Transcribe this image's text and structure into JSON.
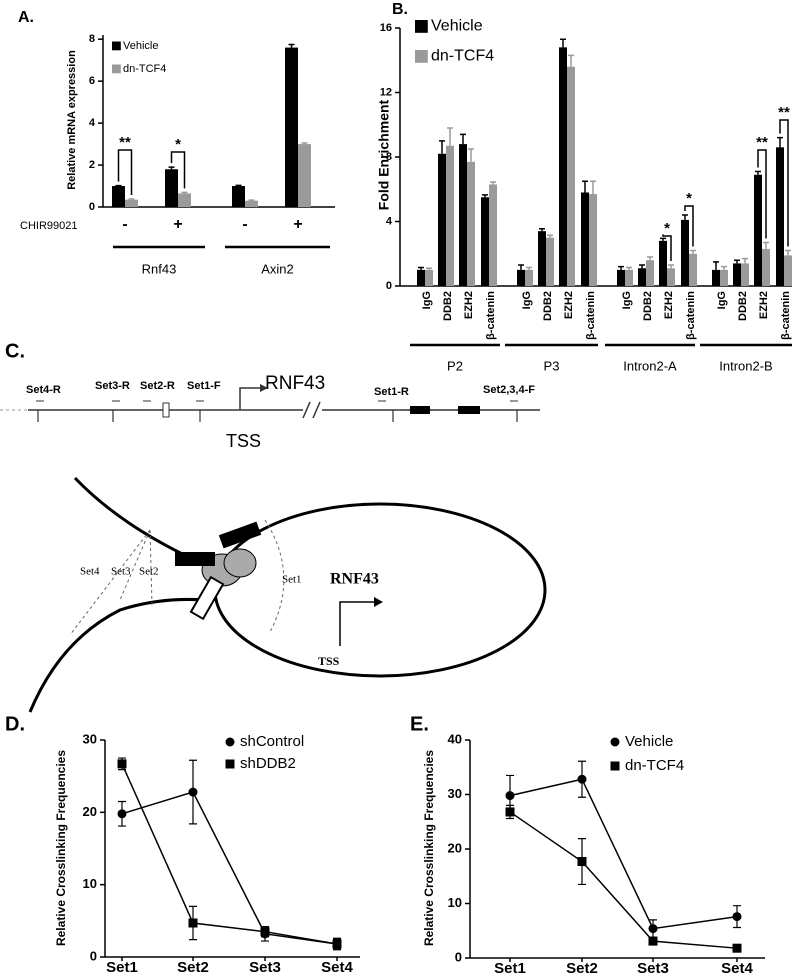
{
  "chart_data": [
    {
      "type": "bar",
      "label": "A.",
      "ylabel": "Relative mRNA expression",
      "xlabel": "CHIR99021",
      "categories": [
        "-",
        "+",
        "-",
        "+"
      ],
      "groups": [
        "Rnf43",
        "Axin2"
      ],
      "series": [
        {
          "name": "Vehicle",
          "color": "#000000",
          "values": [
            1.0,
            1.8,
            1.0,
            7.6
          ],
          "errors": [
            0.02,
            0.1,
            0.03,
            0.15
          ]
        },
        {
          "name": "dn-TCF4",
          "color": "#9a9a9a",
          "values": [
            0.35,
            0.65,
            0.3,
            3.0
          ],
          "errors": [
            0.03,
            0.05,
            0.03,
            0.05
          ]
        }
      ],
      "ylim": [
        0,
        8.2
      ],
      "yticks": [
        0,
        2,
        4,
        6,
        8
      ],
      "annotations": [
        "**",
        "*"
      ]
    },
    {
      "type": "bar",
      "label": "B.",
      "ylabel": "Fold Enrichment",
      "categories": [
        "IgG",
        "DDB2",
        "EZH2",
        "β-catenin",
        "IgG",
        "DDB2",
        "EZH2",
        "β-catenin",
        "IgG",
        "DDB2",
        "EZH2",
        "β-catenin",
        "IgG",
        "DDB2",
        "EZH2",
        "β-catenin"
      ],
      "groups": [
        "P2",
        "P3",
        "Intron2-A",
        "Intron2-B"
      ],
      "series": [
        {
          "name": "Vehicle",
          "color": "#000000",
          "values": [
            1.0,
            8.2,
            8.8,
            5.5,
            1.0,
            3.4,
            14.8,
            5.8,
            1.0,
            1.1,
            2.8,
            4.1,
            1.0,
            1.4,
            6.9,
            8.6
          ],
          "errors": [
            0.15,
            0.8,
            0.6,
            0.15,
            0.3,
            0.15,
            0.5,
            0.7,
            0.2,
            0.2,
            0.15,
            0.3,
            0.5,
            0.2,
            0.2,
            0.6
          ]
        },
        {
          "name": "dn-TCF4",
          "color": "#9a9a9a",
          "values": [
            1.0,
            8.7,
            7.7,
            6.3,
            1.0,
            3.0,
            13.6,
            5.7,
            1.0,
            1.6,
            1.1,
            2.0,
            1.0,
            1.4,
            2.3,
            1.9
          ],
          "errors": [
            0.1,
            1.1,
            0.8,
            0.15,
            0.15,
            0.15,
            0.7,
            0.8,
            0.15,
            0.2,
            0.2,
            0.2,
            0.2,
            0.3,
            0.4,
            0.3
          ]
        }
      ],
      "ylim": [
        0,
        16
      ],
      "yticks": [
        0,
        4,
        8,
        12,
        16
      ],
      "annotations": [
        "*",
        "*",
        "**",
        "**"
      ]
    },
    {
      "type": "line",
      "label": "D.",
      "ylabel": "Relative Crosslinking Frequencies",
      "categories": [
        "Set1",
        "Set2",
        "Set3",
        "Set4"
      ],
      "series": [
        {
          "name": "shControl",
          "color": "#000000",
          "values": [
            19.8,
            22.8,
            3.2,
            1.8
          ],
          "errors": [
            1.7,
            4.4,
            1.0,
            0.8
          ]
        },
        {
          "name": "shDDB2",
          "color": "#000000",
          "values": [
            26.7,
            4.7,
            3.5,
            1.8
          ],
          "errors": [
            0.8,
            2.3,
            0.7,
            0.7
          ]
        }
      ],
      "ylim": [
        0,
        30
      ],
      "yticks": [
        0,
        10,
        20,
        30
      ]
    },
    {
      "type": "line",
      "label": "E.",
      "ylabel": "Relative Crosslinking Frequencies",
      "categories": [
        "Set1",
        "Set2",
        "Set3",
        "Set4"
      ],
      "series": [
        {
          "name": "Vehicle",
          "color": "#000000",
          "values": [
            29.8,
            32.8,
            5.4,
            7.6
          ],
          "errors": [
            3.7,
            3.3,
            1.6,
            2.0
          ]
        },
        {
          "name": "dn-TCF4",
          "color": "#000000",
          "values": [
            26.8,
            17.7,
            3.1,
            1.8
          ],
          "errors": [
            1.2,
            4.2,
            0.7,
            0.4
          ]
        }
      ],
      "ylim": [
        0,
        40
      ],
      "yticks": [
        0,
        10,
        20,
        30,
        40
      ]
    }
  ],
  "diagram": {
    "label": "C.",
    "gene": "RNF43",
    "tss": "TSS",
    "primers": [
      "Set4-R",
      "Set3-R",
      "Set2-R",
      "Set1-F",
      "Set1-R",
      "Set2,3,4-F"
    ],
    "loop": {
      "gene": "RNF43",
      "tss": "TSS",
      "sets": [
        "Set4",
        "Set3",
        "Set2",
        "Set1"
      ]
    }
  }
}
